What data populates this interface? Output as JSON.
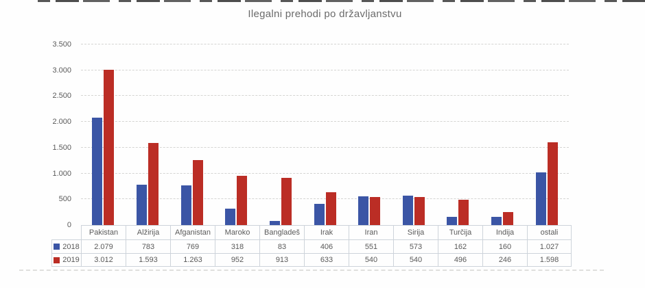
{
  "page": {
    "background": "scanned-paper",
    "artifacts": [
      "top-scan-line",
      "bottom-scan-line"
    ]
  },
  "chart_data": {
    "type": "bar",
    "title": "Ilegalni prehodi po državljanstvu",
    "title_color": "#6a6a6a",
    "categories": [
      "Pakistan",
      "Alžirija",
      "Afganistan",
      "Maroko",
      "Bangladeš",
      "Irak",
      "Iran",
      "Sirija",
      "Turčija",
      "Indija",
      "ostali"
    ],
    "series": [
      {
        "name": "2018",
        "color": "#3b55a5",
        "values": [
          2079,
          783,
          769,
          318,
          83,
          406,
          551,
          573,
          162,
          160,
          1027
        ],
        "labels": [
          "2.079",
          "783",
          "769",
          "318",
          "83",
          "406",
          "551",
          "573",
          "162",
          "160",
          "1.027"
        ]
      },
      {
        "name": "2019",
        "color": "#bb2d25",
        "values": [
          3012,
          1593,
          1263,
          952,
          913,
          633,
          540,
          540,
          496,
          246,
          1598
        ],
        "labels": [
          "3.012",
          "1.593",
          "1.263",
          "952",
          "913",
          "633",
          "540",
          "540",
          "496",
          "246",
          "1.598"
        ]
      }
    ],
    "xlabel": "",
    "ylabel": "",
    "ylim": [
      0,
      3500
    ],
    "yticks": [
      {
        "value": 0,
        "label": "0"
      },
      {
        "value": 500,
        "label": "500"
      },
      {
        "value": 1000,
        "label": "1.000"
      },
      {
        "value": 1500,
        "label": "1.500"
      },
      {
        "value": 2000,
        "label": "2.000"
      },
      {
        "value": 2500,
        "label": "2.500"
      },
      {
        "value": 3000,
        "label": "3.000"
      },
      {
        "value": 3500,
        "label": "3.500"
      }
    ],
    "grid": "horizontal-dashed",
    "legend_position": "data-table-left-column"
  }
}
